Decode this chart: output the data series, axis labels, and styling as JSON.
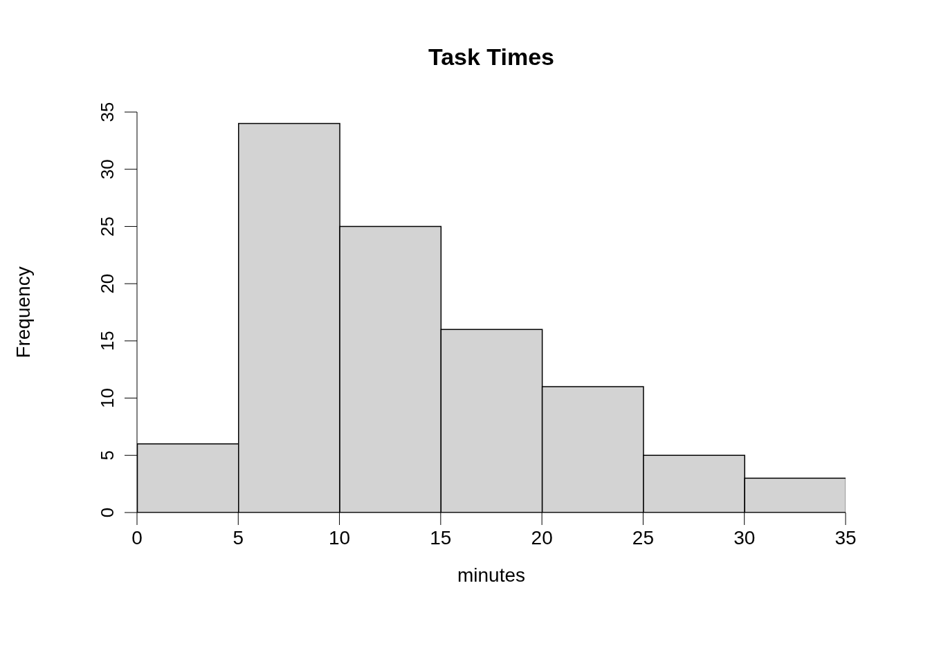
{
  "chart_data": {
    "type": "histogram",
    "title": "Task Times",
    "xlabel": "minutes",
    "ylabel": "Frequency",
    "bins": [
      0,
      5,
      10,
      15,
      20,
      25,
      30,
      35
    ],
    "values": [
      6,
      34,
      25,
      16,
      11,
      5,
      3
    ],
    "color": "#d3d3d3",
    "xlim": [
      0,
      35
    ],
    "xticks": [
      0,
      5,
      10,
      15,
      20,
      25,
      30,
      35
    ],
    "ylim": [
      0,
      35
    ],
    "yticks": [
      0,
      5,
      10,
      15,
      20,
      25,
      30,
      35
    ],
    "grid": false
  }
}
